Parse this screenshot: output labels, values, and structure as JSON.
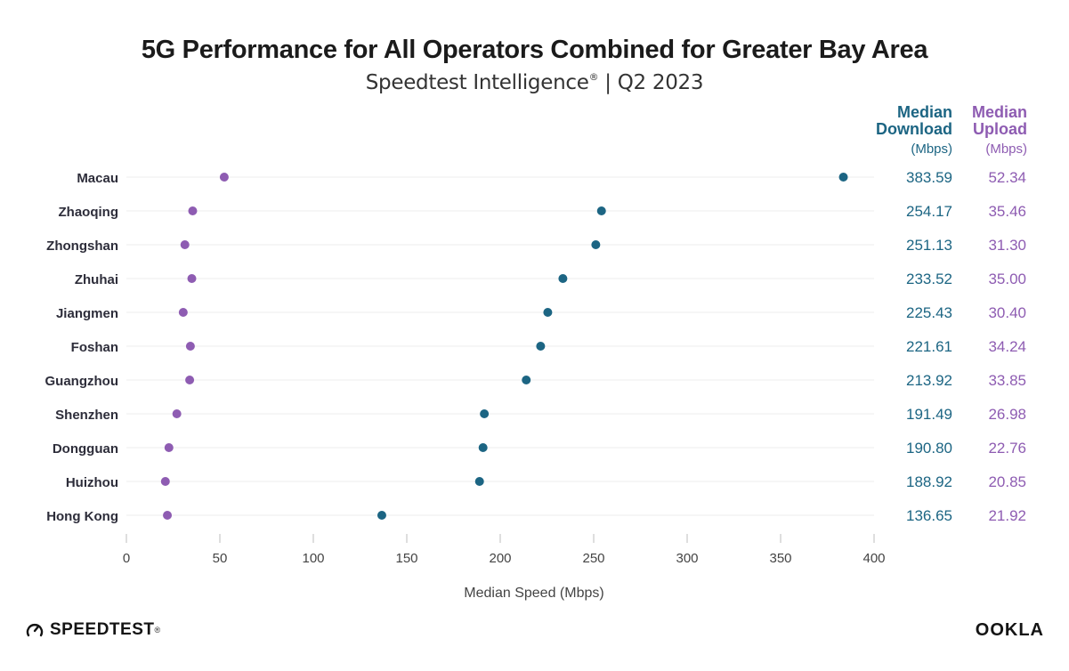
{
  "header": {
    "title": "5G Performance for All Operators Combined for Greater Bay Area",
    "subtitle_main": "Speedtest Intelligence",
    "subtitle_mark": "®",
    "subtitle_period": "| Q2 2023"
  },
  "columns": {
    "download_title_1": "Median",
    "download_title_2": "Download",
    "download_unit": "(Mbps)",
    "upload_title_1": "Median",
    "upload_title_2": "Upload",
    "upload_unit": "(Mbps)"
  },
  "footer": {
    "left_brand": "SPEEDTEST",
    "left_mark": "®",
    "right_brand": "OOKLA"
  },
  "colors": {
    "download": "#1c6583",
    "upload": "#8e5cb2",
    "label": "#2d2d3a"
  },
  "chart_data": {
    "type": "scatter",
    "title": "5G Performance for All Operators Combined for Greater Bay Area",
    "subtitle": "Speedtest Intelligence® | Q2 2023",
    "xlabel": "Median Speed (Mbps)",
    "ylabel": "",
    "xlim": [
      0,
      400
    ],
    "xticks": [
      0,
      50,
      100,
      150,
      200,
      250,
      300,
      350,
      400
    ],
    "categories": [
      "Macau",
      "Zhaoqing",
      "Zhongshan",
      "Zhuhai",
      "Jiangmen",
      "Foshan",
      "Guangzhou",
      "Shenzhen",
      "Dongguan",
      "Huizhou",
      "Hong Kong"
    ],
    "series": [
      {
        "name": "Median Download (Mbps)",
        "color": "#1c6583",
        "values": [
          383.59,
          254.17,
          251.13,
          233.52,
          225.43,
          221.61,
          213.92,
          191.49,
          190.8,
          188.92,
          136.65
        ],
        "labels": [
          "383.59",
          "254.17",
          "251.13",
          "233.52",
          "225.43",
          "221.61",
          "213.92",
          "191.49",
          "190.80",
          "188.92",
          "136.65"
        ]
      },
      {
        "name": "Median Upload (Mbps)",
        "color": "#8e5cb2",
        "values": [
          52.34,
          35.46,
          31.3,
          35.0,
          30.4,
          34.24,
          33.85,
          26.98,
          22.76,
          20.85,
          21.92
        ],
        "labels": [
          "52.34",
          "35.46",
          "31.30",
          "35.00",
          "30.40",
          "34.24",
          "33.85",
          "26.98",
          "22.76",
          "20.85",
          "21.92"
        ]
      }
    ],
    "grid": true,
    "legend": "none"
  }
}
